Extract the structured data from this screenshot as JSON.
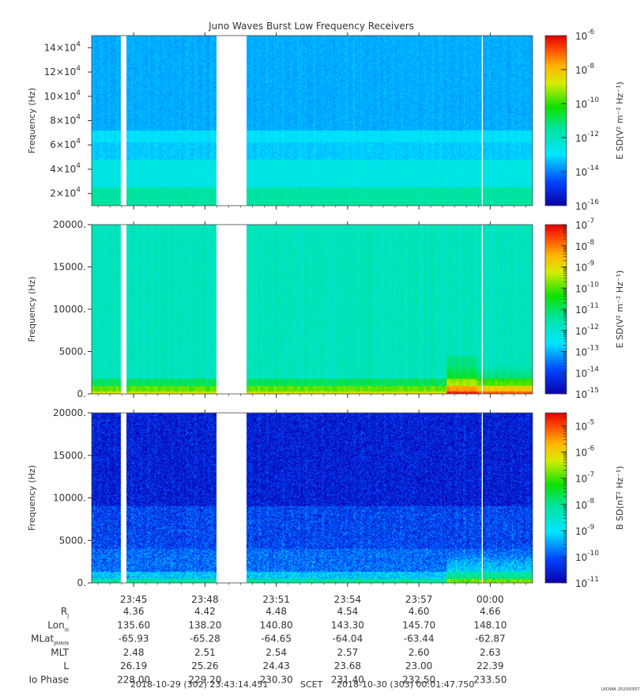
{
  "title": "Juno Waves Burst Low Frequency Receivers",
  "chart_data": [
    {
      "type": "heatmap",
      "panel": "top",
      "ylabel": "Frequency (Hz)",
      "ylim": [
        10000,
        150000
      ],
      "yticks": [
        {
          "value": 20000,
          "mant": "2",
          "exp": "4"
        },
        {
          "value": 40000,
          "mant": "4",
          "exp": "4"
        },
        {
          "value": 60000,
          "mant": "6",
          "exp": "4"
        },
        {
          "value": 80000,
          "mant": "8",
          "exp": "4"
        },
        {
          "value": 100000,
          "mant": "10",
          "exp": "4"
        },
        {
          "value": 120000,
          "mant": "12",
          "exp": "4"
        },
        {
          "value": 140000,
          "mant": "14",
          "exp": "4"
        }
      ],
      "colorbar": {
        "label": "E SD(V² m⁻² Hz⁻¹)",
        "log_range": [
          -16,
          -6
        ],
        "ticks": [
          -6,
          -8,
          -10,
          -12,
          -14,
          -16
        ],
        "minor_ticks": false
      },
      "bands": [
        {
          "from": 10000,
          "to": 25000,
          "level": -11.6
        },
        {
          "from": 25000,
          "to": 48000,
          "level": -12.6
        },
        {
          "from": 48000,
          "to": 62000,
          "level": -13.3
        },
        {
          "from": 62000,
          "to": 72000,
          "level": -13.0
        },
        {
          "from": 72000,
          "to": 150000,
          "level": -13.6
        }
      ]
    },
    {
      "type": "heatmap",
      "panel": "middle",
      "ylabel": "Frequency (Hz)",
      "ylim": [
        0,
        20000
      ],
      "yticks": [
        {
          "value": 0,
          "label": "0."
        },
        {
          "value": 5000,
          "label": "5000."
        },
        {
          "value": 10000,
          "label": "10000."
        },
        {
          "value": 15000,
          "label": "15000."
        },
        {
          "value": 20000,
          "label": "20000."
        }
      ],
      "colorbar": {
        "label": "E SD(V² m⁻² Hz⁻¹)",
        "log_range": [
          -15,
          -7
        ],
        "ticks": [
          -7,
          -8,
          -9,
          -10,
          -11,
          -12,
          -13,
          -14,
          -15
        ],
        "minor_ticks": true
      },
      "bands": [
        {
          "from": 0,
          "to": 300,
          "level": -9.2
        },
        {
          "from": 300,
          "to": 900,
          "level": -10.0
        },
        {
          "from": 900,
          "to": 1800,
          "level": -11.0
        },
        {
          "from": 1800,
          "to": 20000,
          "level": -11.8
        }
      ]
    },
    {
      "type": "heatmap",
      "panel": "bottom",
      "ylabel": "Frequency (Hz)",
      "ylim": [
        0,
        20000
      ],
      "yticks": [
        {
          "value": 0,
          "label": "0."
        },
        {
          "value": 5000,
          "label": "5000."
        },
        {
          "value": 10000,
          "label": "10000."
        },
        {
          "value": 15000,
          "label": "15000."
        },
        {
          "value": 20000,
          "label": "20000."
        }
      ],
      "colorbar": {
        "label": "B SD(nT² Hz⁻¹)",
        "log_range": [
          -11,
          -4.5
        ],
        "ticks": [
          -5,
          -6,
          -7,
          -8,
          -9,
          -10,
          -11
        ],
        "minor_ticks": true
      },
      "bands": [
        {
          "from": 0,
          "to": 500,
          "level": -8.2
        },
        {
          "from": 500,
          "to": 1300,
          "level": -9.2
        },
        {
          "from": 1300,
          "to": 4000,
          "level": -9.9
        },
        {
          "from": 4000,
          "to": 9000,
          "level": -10.2
        },
        {
          "from": 9000,
          "to": 20000,
          "level": -10.6
        }
      ]
    }
  ],
  "time_axis": {
    "time_range_seconds": [
      85394,
      86507
    ],
    "data_gaps": [
      [
        85467,
        85482
      ],
      [
        85710,
        85784
      ]
    ],
    "ticks": [
      {
        "t": 85500,
        "label": "23:45"
      },
      {
        "t": 85680,
        "label": "23:48"
      },
      {
        "t": 85860,
        "label": "23:51"
      },
      {
        "t": 86040,
        "label": "23:54"
      },
      {
        "t": 86220,
        "label": "23:57"
      },
      {
        "t": 86400,
        "label": "00:00"
      }
    ]
  },
  "ephemeris": {
    "rows": [
      {
        "label": "R",
        "sub": "J",
        "values": [
          "4.36",
          "4.42",
          "4.48",
          "4.54",
          "4.60",
          "4.66"
        ]
      },
      {
        "label": "Lon",
        "sub": "III",
        "values": [
          "135.60",
          "138.20",
          "140.80",
          "143.30",
          "145.70",
          "148.10"
        ]
      },
      {
        "label": "MLat",
        "sub": "JRM09",
        "values": [
          "-65.93",
          "-65.28",
          "-64.65",
          "-64.04",
          "-63.44",
          "-62.87"
        ]
      },
      {
        "label": "MLT",
        "sub": "",
        "values": [
          "2.48",
          "2.51",
          "2.54",
          "2.57",
          "2.60",
          "2.63"
        ]
      },
      {
        "label": "L",
        "sub": "",
        "values": [
          "26.19",
          "25.26",
          "24.43",
          "23.68",
          "23.00",
          "22.39"
        ]
      },
      {
        "label": "Io Phase",
        "sub": "",
        "values": [
          "228.00",
          "229.20",
          "230.30",
          "231.40",
          "232.50",
          "233.50"
        ]
      }
    ]
  },
  "footer": {
    "start": "2018-10-29 (302) 23:43:14.451",
    "scet": "SCET",
    "end": "2018-10-30 (303) 00:01:47.750",
    "stamp": "UIOWA 20200307"
  }
}
